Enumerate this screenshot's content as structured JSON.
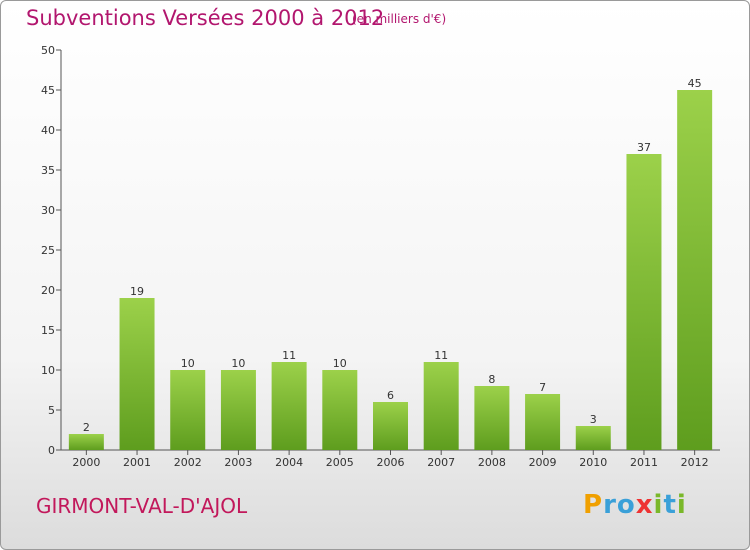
{
  "header": {
    "title": "Subventions Versées 2000 à 2012",
    "unit": "(en milliers d'€)"
  },
  "footer": {
    "place": "GIRMONT-VAL-D'AJOL",
    "brand_letters": [
      "P",
      "r",
      "o",
      "x",
      "i",
      "t",
      "i"
    ]
  },
  "chart_data": {
    "type": "bar",
    "title": "Subventions Versées 2000 à 2012",
    "subtitle": "(en milliers d'€)",
    "categories": [
      "2000",
      "2001",
      "2002",
      "2003",
      "2004",
      "2005",
      "2006",
      "2007",
      "2008",
      "2009",
      "2010",
      "2011",
      "2012"
    ],
    "values": [
      2,
      19,
      10,
      10,
      11,
      10,
      6,
      11,
      8,
      7,
      3,
      37,
      45
    ],
    "value_labels": [
      "2",
      "19",
      "10",
      "10",
      "11",
      "10",
      "6",
      "11",
      "8",
      "7",
      "3",
      "37",
      "45"
    ],
    "ylim": [
      0,
      50
    ],
    "yticks": [
      0,
      5,
      10,
      15,
      20,
      25,
      30,
      35,
      40,
      45,
      50
    ],
    "ytick_labels": [
      "0",
      "5",
      "10",
      "15",
      "20",
      "25",
      "30",
      "35",
      "40",
      "45",
      "50"
    ],
    "xlabel": "",
    "ylabel": "",
    "grid": false,
    "bar_color_top": "#9cd14a",
    "bar_color_bottom": "#5e9d1e"
  }
}
